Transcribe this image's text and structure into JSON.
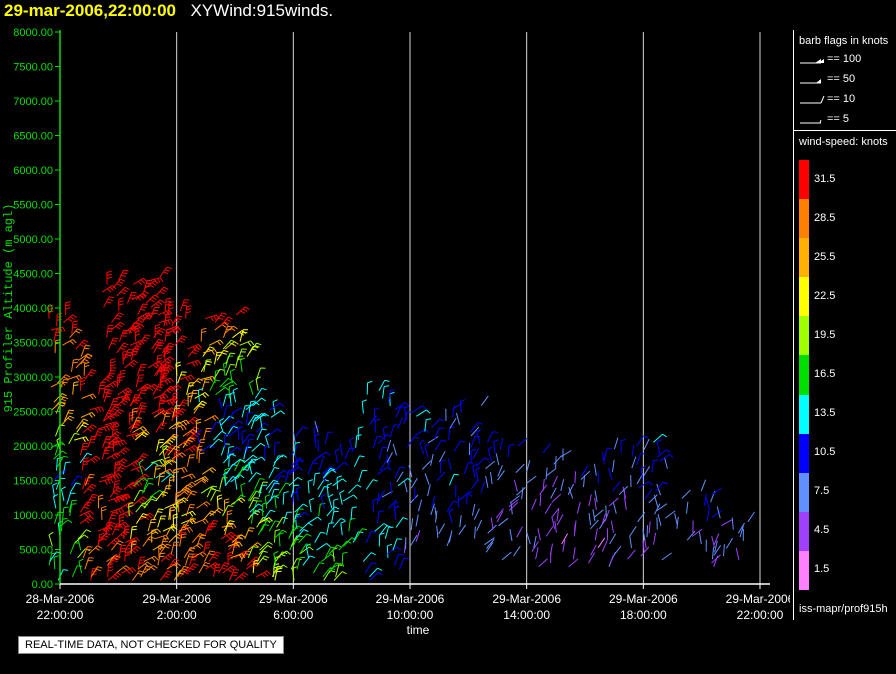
{
  "header": {
    "timestamp": "29-mar-2006,22:00:00",
    "title": "XYWind:915winds."
  },
  "legend": {
    "flags_title": "barb flags in knots",
    "flags": [
      {
        "label": "== 100"
      },
      {
        "label": "== 50"
      },
      {
        "label": "== 10"
      },
      {
        "label": "== 5"
      }
    ],
    "speed_title": "wind-speed: knots",
    "speed_scale": [
      {
        "label": "31.5",
        "color": "#ff0000"
      },
      {
        "label": "28.5",
        "color": "#ff8000"
      },
      {
        "label": "25.5",
        "color": "#ffb000"
      },
      {
        "label": "22.5",
        "color": "#ffff00"
      },
      {
        "label": "19.5",
        "color": "#a0ff00"
      },
      {
        "label": "16.5",
        "color": "#00e000"
      },
      {
        "label": "13.5",
        "color": "#00ffff"
      },
      {
        "label": "10.5",
        "color": "#0000ff"
      },
      {
        "label": "7.5",
        "color": "#6090ff"
      },
      {
        "label": "4.5",
        "color": "#a040ff"
      },
      {
        "label": "1.5",
        "color": "#ff80ff"
      }
    ],
    "source": "iss-mapr/prof915h"
  },
  "qc_note": "REAL-TIME DATA, NOT CHECKED FOR QUALITY",
  "chart_data": {
    "type": "wind-barb time-height",
    "xlabel": "time",
    "ylabel": "915 Profiler Altitude (m agl)",
    "x_ticks": [
      {
        "date": "28-Mar-2006",
        "time": "22:00:00"
      },
      {
        "date": "29-Mar-2006",
        "time": "2:00:00"
      },
      {
        "date": "29-Mar-2006",
        "time": "6:00:00"
      },
      {
        "date": "29-Mar-2006",
        "time": "10:00:00"
      },
      {
        "date": "29-Mar-2006",
        "time": "14:00:00"
      },
      {
        "date": "29-Mar-2006",
        "time": "18:00:00"
      },
      {
        "date": "29-Mar-2006",
        "time": "22:00:00"
      }
    ],
    "y_ticks": [
      "0.00",
      "500.00",
      "1000.00",
      "1500.00",
      "2000.00",
      "2500.00",
      "3000.00",
      "3500.00",
      "4000.00",
      "4500.00",
      "5000.00",
      "5500.00",
      "6000.00",
      "6500.00",
      "7000.00",
      "7500.00",
      "8000.00"
    ],
    "ylim": [
      0,
      8000
    ],
    "xlim_hours": [
      0,
      24
    ],
    "grid": "vertical",
    "profiles": [
      {
        "hour": 0.2,
        "top": 3900,
        "speeds": [
          [
            0,
            12
          ],
          [
            500,
            18
          ],
          [
            1500,
            11
          ],
          [
            2500,
            26
          ],
          [
            3900,
            33
          ]
        ]
      },
      {
        "hour": 1.3,
        "top": 3000,
        "speeds": [
          [
            0,
            28
          ],
          [
            1000,
            31
          ],
          [
            2000,
            33
          ],
          [
            3000,
            34
          ]
        ]
      },
      {
        "hour": 2.1,
        "top": 4400,
        "speeds": [
          [
            0,
            34
          ],
          [
            1500,
            33
          ],
          [
            3000,
            35
          ],
          [
            4400,
            34
          ]
        ]
      },
      {
        "hour": 3.0,
        "top": 4500,
        "speeds": [
          [
            0,
            30
          ],
          [
            800,
            24
          ],
          [
            1500,
            14
          ],
          [
            2500,
            32
          ],
          [
            4500,
            35
          ]
        ]
      },
      {
        "hour": 3.8,
        "top": 4000,
        "speeds": [
          [
            0,
            33
          ],
          [
            1000,
            22
          ],
          [
            2000,
            31
          ],
          [
            4000,
            34
          ]
        ]
      },
      {
        "hour": 4.3,
        "top": 3100,
        "speeds": [
          [
            0,
            28
          ],
          [
            1000,
            30
          ],
          [
            2000,
            27
          ],
          [
            3100,
            22
          ]
        ]
      },
      {
        "hour": 5.4,
        "top": 3900,
        "speeds": [
          [
            0,
            33
          ],
          [
            800,
            30
          ],
          [
            1500,
            14
          ],
          [
            2500,
            11
          ],
          [
            3900,
            33
          ]
        ]
      },
      {
        "hour": 6.2,
        "top": 3600,
        "speeds": [
          [
            0,
            32
          ],
          [
            1000,
            20
          ],
          [
            2000,
            10
          ],
          [
            3000,
            18
          ],
          [
            3600,
            23
          ]
        ]
      },
      {
        "hour": 6.9,
        "top": 2600,
        "speeds": [
          [
            0,
            22
          ],
          [
            1000,
            15
          ],
          [
            2000,
            12
          ],
          [
            2600,
            13
          ]
        ]
      },
      {
        "hour": 7.6,
        "top": 1900,
        "speeds": [
          [
            0,
            20
          ],
          [
            800,
            16
          ],
          [
            1900,
            11
          ]
        ]
      },
      {
        "hour": 8.6,
        "top": 2200,
        "speeds": [
          [
            0,
            17
          ],
          [
            1000,
            13
          ],
          [
            2200,
            9
          ]
        ]
      },
      {
        "hour": 9.6,
        "top": 2100,
        "speeds": [
          [
            0,
            19
          ],
          [
            1000,
            14
          ],
          [
            2100,
            11
          ]
        ]
      },
      {
        "hour": 11.0,
        "top": 2800,
        "speeds": [
          [
            0,
            13
          ],
          [
            1000,
            11
          ],
          [
            2000,
            9
          ],
          [
            2800,
            14
          ]
        ]
      },
      {
        "hour": 12.4,
        "top": 2500,
        "speeds": [
          [
            400,
            6
          ],
          [
            1500,
            9
          ],
          [
            2500,
            11
          ]
        ]
      },
      {
        "hour": 13.8,
        "top": 2600,
        "speeds": [
          [
            500,
            8
          ],
          [
            1500,
            11
          ],
          [
            2600,
            9
          ]
        ]
      },
      {
        "hour": 15.2,
        "top": 2100,
        "speeds": [
          [
            300,
            7
          ],
          [
            1200,
            5
          ],
          [
            2100,
            12
          ]
        ]
      },
      {
        "hour": 16.6,
        "top": 1900,
        "speeds": [
          [
            200,
            5
          ],
          [
            1000,
            4
          ],
          [
            1900,
            9
          ]
        ]
      },
      {
        "hour": 17.8,
        "top": 1600,
        "speeds": [
          [
            200,
            4
          ],
          [
            900,
            5
          ],
          [
            1600,
            8
          ]
        ]
      },
      {
        "hour": 19.0,
        "top": 2000,
        "speeds": [
          [
            200,
            5
          ],
          [
            1000,
            6
          ],
          [
            2000,
            10
          ]
        ]
      },
      {
        "hour": 20.4,
        "top": 2100,
        "speeds": [
          [
            300,
            6
          ],
          [
            1200,
            8
          ],
          [
            2100,
            11
          ]
        ]
      },
      {
        "hour": 21.8,
        "top": 1400,
        "speeds": [
          [
            200,
            5
          ],
          [
            800,
            7
          ],
          [
            1400,
            9
          ]
        ]
      },
      {
        "hour": 23.0,
        "top": 1000,
        "speeds": [
          [
            300,
            6
          ],
          [
            1000,
            8
          ]
        ]
      }
    ]
  }
}
